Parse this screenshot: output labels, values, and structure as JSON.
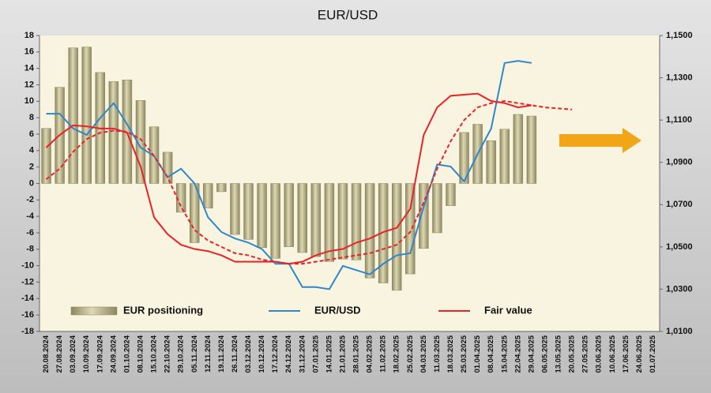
{
  "chart_data": {
    "type": "bar_line",
    "title": "EUR/USD",
    "categories": [
      "20.08.2024",
      "27.08.2024",
      "03.09.2024",
      "10.09.2024",
      "17.09.2024",
      "24.09.2024",
      "01.10.2024",
      "08.10.2024",
      "15.10.2024",
      "22.10.2024",
      "29.10.2024",
      "05.11.2024",
      "12.11.2024",
      "19.11.2024",
      "26.11.2024",
      "03.12.2024",
      "10.12.2024",
      "17.12.2024",
      "24.12.2024",
      "31.12.2024",
      "07.01.2025",
      "14.01.2025",
      "21.01.2025",
      "28.01.2025",
      "04.02.2025",
      "11.02.2025",
      "18.02.2025",
      "25.02.2025",
      "04.03.2025",
      "11.03.2025",
      "18.03.2025",
      "25.03.2025",
      "01.04.2025",
      "08.04.2025",
      "15.04.2025",
      "22.04.2025",
      "29.04.2025",
      "06.05.2025",
      "13.05.2025",
      "20.05.2025",
      "27.05.2025",
      "03.06.2025",
      "10.06.2025",
      "17.06.2025",
      "24.06.2025",
      "01.07.2025"
    ],
    "series": [
      {
        "name": "EUR positioning",
        "type": "bar",
        "color": "#b3ab80",
        "values": [
          6.7,
          11.7,
          16.5,
          16.6,
          13.5,
          12.4,
          12.6,
          10.1,
          6.9,
          3.8,
          -3.5,
          -7.2,
          -3.0,
          -1.0,
          -6.2,
          -6.8,
          -7.8,
          -9.1,
          -7.7,
          -8.4,
          -8.9,
          -9.5,
          -9.2,
          -9.3,
          -11.5,
          -12.1,
          -13.0,
          -11.0,
          -7.9,
          -6.0,
          -2.7,
          6.2,
          7.2,
          5.2,
          6.6,
          8.4,
          8.2,
          null,
          null,
          null,
          null,
          null,
          null,
          null,
          null,
          null
        ]
      },
      {
        "name": "EUR/USD",
        "type": "line",
        "axis": "y2",
        "color": "#2f86c9",
        "values": [
          1.113,
          1.113,
          1.106,
          1.103,
          1.111,
          1.118,
          1.108,
          1.097,
          1.093,
          1.083,
          1.087,
          1.08,
          1.064,
          1.057,
          1.054,
          1.052,
          1.049,
          1.042,
          1.042,
          1.031,
          1.031,
          1.03,
          1.041,
          1.039,
          1.037,
          1.042,
          1.046,
          1.047,
          1.069,
          1.089,
          1.088,
          1.081,
          1.094,
          1.106,
          1.137,
          1.138,
          1.137,
          null,
          null,
          null,
          null,
          null,
          null,
          null,
          null,
          null
        ]
      },
      {
        "name": "Fair value",
        "type": "line",
        "axis": "y2",
        "color": "#e8232a",
        "values": [
          1.097,
          1.103,
          1.1075,
          1.107,
          1.106,
          1.106,
          1.104,
          1.088,
          1.064,
          1.056,
          1.051,
          1.049,
          1.048,
          1.046,
          1.043,
          1.043,
          1.043,
          1.043,
          1.042,
          1.043,
          1.046,
          1.048,
          1.049,
          1.052,
          1.054,
          1.057,
          1.059,
          1.068,
          1.103,
          1.116,
          1.1215,
          1.122,
          1.1225,
          1.119,
          1.118,
          1.116,
          1.117,
          null,
          null,
          null,
          null,
          null,
          null,
          null,
          null,
          null
        ]
      },
      {
        "type": "line",
        "axis": "y2",
        "dashed": true,
        "color": "#e8232a",
        "values": [
          1.082,
          1.087,
          1.095,
          1.101,
          1.104,
          1.105,
          1.1045,
          1.101,
          1.093,
          1.083,
          1.069,
          1.058,
          1.053,
          1.05,
          1.047,
          1.046,
          1.044,
          1.043,
          1.042,
          1.042,
          1.043,
          1.044,
          1.045,
          1.046,
          1.047,
          1.049,
          1.051,
          1.057,
          1.071,
          1.087,
          1.1,
          1.11,
          1.116,
          1.118,
          1.119,
          1.118,
          1.117,
          1.116,
          1.1155,
          1.115,
          null,
          null,
          null,
          null,
          null,
          null
        ]
      }
    ],
    "ylim": [
      -18,
      18
    ],
    "yticks": [
      -18,
      -16,
      -14,
      -12,
      -10,
      -8,
      -6,
      -4,
      -2,
      0,
      2,
      4,
      6,
      8,
      10,
      12,
      14,
      16,
      18
    ],
    "y2lim": [
      1.01,
      1.15
    ],
    "y2ticks": [
      {
        "value": 1.01,
        "label": "1,0100"
      },
      {
        "value": 1.03,
        "label": "1,0300"
      },
      {
        "value": 1.05,
        "label": "1,0500"
      },
      {
        "value": 1.07,
        "label": "1,0700"
      },
      {
        "value": 1.09,
        "label": "1,0900"
      },
      {
        "value": 1.11,
        "label": "1,1100"
      },
      {
        "value": 1.13,
        "label": "1,1300"
      },
      {
        "value": 1.15,
        "label": "1,1500"
      }
    ],
    "grid": false,
    "legend": "bottom"
  }
}
